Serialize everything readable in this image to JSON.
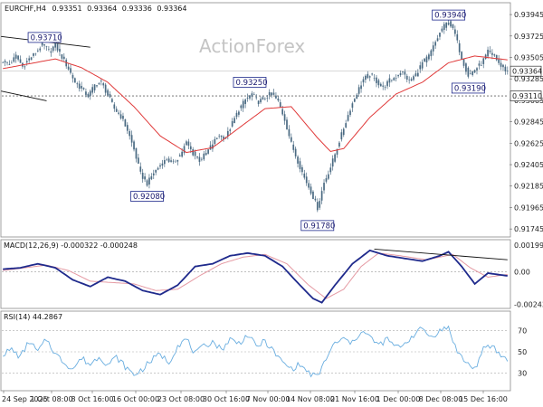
{
  "chart_data": {
    "type": "candlestick",
    "header": {
      "symbol": "EURCHF,H4",
      "open": "0.93351",
      "high": "0.93364",
      "low": "0.93336",
      "close": "0.93364"
    },
    "watermark": "ActionForex",
    "price_axis": {
      "ticks": [
        "0.93945",
        "0.93725",
        "0.93505",
        "0.93285",
        "0.93065",
        "0.92845",
        "0.92625",
        "0.92405",
        "0.92185",
        "0.91965",
        "0.91745"
      ],
      "range": [
        0.917,
        0.9402
      ]
    },
    "x_axis": {
      "ticks": [
        "24 Sep 2025",
        "1 Oct 08:00",
        "8 Oct 16:00",
        "16 Oct 00:00",
        "23 Oct 08:00",
        "30 Oct 16:00",
        "7 Nov 00:00",
        "14 Nov 08:00",
        "21 Nov 16:00",
        "1 Dec 00:00",
        "8 Dec 08:00",
        "15 Dec 16:00"
      ]
    },
    "current_price": "0.93364",
    "horizontal_level": "0.93110",
    "price_points": [
      {
        "i": 0,
        "v": 0.9347
      },
      {
        "i": 3,
        "v": 0.9343
      },
      {
        "i": 6,
        "v": 0.9352
      },
      {
        "i": 9,
        "v": 0.9341
      },
      {
        "i": 12,
        "v": 0.9349
      },
      {
        "i": 15,
        "v": 0.9355
      },
      {
        "i": 18,
        "v": 0.9364
      },
      {
        "i": 21,
        "v": 0.9357
      },
      {
        "i": 24,
        "v": 0.9363
      },
      {
        "i": 27,
        "v": 0.9351
      },
      {
        "i": 30,
        "v": 0.9339
      },
      {
        "i": 33,
        "v": 0.9325
      },
      {
        "i": 36,
        "v": 0.9318
      },
      {
        "i": 39,
        "v": 0.9311
      },
      {
        "i": 42,
        "v": 0.9322
      },
      {
        "i": 45,
        "v": 0.9325
      },
      {
        "i": 48,
        "v": 0.9312
      },
      {
        "i": 51,
        "v": 0.9298
      },
      {
        "i": 54,
        "v": 0.929
      },
      {
        "i": 57,
        "v": 0.9276
      },
      {
        "i": 60,
        "v": 0.9256
      },
      {
        "i": 63,
        "v": 0.9231
      },
      {
        "i": 66,
        "v": 0.9221
      },
      {
        "i": 69,
        "v": 0.9232
      },
      {
        "i": 72,
        "v": 0.924
      },
      {
        "i": 75,
        "v": 0.9246
      },
      {
        "i": 78,
        "v": 0.9242
      },
      {
        "i": 81,
        "v": 0.925
      },
      {
        "i": 84,
        "v": 0.9263
      },
      {
        "i": 87,
        "v": 0.9252
      },
      {
        "i": 90,
        "v": 0.9245
      },
      {
        "i": 93,
        "v": 0.9252
      },
      {
        "i": 96,
        "v": 0.9262
      },
      {
        "i": 99,
        "v": 0.9271
      },
      {
        "i": 102,
        "v": 0.9268
      },
      {
        "i": 105,
        "v": 0.9283
      },
      {
        "i": 108,
        "v": 0.9297
      },
      {
        "i": 111,
        "v": 0.9307
      },
      {
        "i": 114,
        "v": 0.9313
      },
      {
        "i": 117,
        "v": 0.9305
      },
      {
        "i": 120,
        "v": 0.9309
      },
      {
        "i": 123,
        "v": 0.9314
      },
      {
        "i": 126,
        "v": 0.9305
      },
      {
        "i": 129,
        "v": 0.9287
      },
      {
        "i": 132,
        "v": 0.9262
      },
      {
        "i": 135,
        "v": 0.9244
      },
      {
        "i": 138,
        "v": 0.9227
      },
      {
        "i": 141,
        "v": 0.9213
      },
      {
        "i": 144,
        "v": 0.9196
      },
      {
        "i": 147,
        "v": 0.9222
      },
      {
        "i": 150,
        "v": 0.9238
      },
      {
        "i": 153,
        "v": 0.9258
      },
      {
        "i": 156,
        "v": 0.9278
      },
      {
        "i": 159,
        "v": 0.9298
      },
      {
        "i": 162,
        "v": 0.9314
      },
      {
        "i": 165,
        "v": 0.9328
      },
      {
        "i": 168,
        "v": 0.9333
      },
      {
        "i": 171,
        "v": 0.9326
      },
      {
        "i": 174,
        "v": 0.9319
      },
      {
        "i": 177,
        "v": 0.9327
      },
      {
        "i": 180,
        "v": 0.9331
      },
      {
        "i": 183,
        "v": 0.9335
      },
      {
        "i": 186,
        "v": 0.9326
      },
      {
        "i": 189,
        "v": 0.9333
      },
      {
        "i": 192,
        "v": 0.9345
      },
      {
        "i": 195,
        "v": 0.9352
      },
      {
        "i": 198,
        "v": 0.9366
      },
      {
        "i": 201,
        "v": 0.938
      },
      {
        "i": 204,
        "v": 0.9388
      },
      {
        "i": 207,
        "v": 0.9374
      },
      {
        "i": 210,
        "v": 0.935
      },
      {
        "i": 213,
        "v": 0.9332
      },
      {
        "i": 216,
        "v": 0.9338
      },
      {
        "i": 219,
        "v": 0.9344
      },
      {
        "i": 222,
        "v": 0.9356
      },
      {
        "i": 225,
        "v": 0.9352
      },
      {
        "i": 228,
        "v": 0.9341
      },
      {
        "i": 231,
        "v": 0.9336
      }
    ],
    "ma_points": [
      {
        "i": 0,
        "v": 0.9339
      },
      {
        "i": 12,
        "v": 0.9344
      },
      {
        "i": 24,
        "v": 0.9349
      },
      {
        "i": 36,
        "v": 0.934
      },
      {
        "i": 48,
        "v": 0.9325
      },
      {
        "i": 60,
        "v": 0.93
      },
      {
        "i": 72,
        "v": 0.927
      },
      {
        "i": 84,
        "v": 0.9253
      },
      {
        "i": 96,
        "v": 0.9258
      },
      {
        "i": 108,
        "v": 0.9278
      },
      {
        "i": 120,
        "v": 0.9298
      },
      {
        "i": 132,
        "v": 0.93
      },
      {
        "i": 144,
        "v": 0.9268
      },
      {
        "i": 150,
        "v": 0.9254
      },
      {
        "i": 156,
        "v": 0.9257
      },
      {
        "i": 168,
        "v": 0.9289
      },
      {
        "i": 180,
        "v": 0.9313
      },
      {
        "i": 192,
        "v": 0.9325
      },
      {
        "i": 204,
        "v": 0.9345
      },
      {
        "i": 216,
        "v": 0.9352
      },
      {
        "i": 231,
        "v": 0.9348
      }
    ],
    "annotations": [
      {
        "label": "0.93710",
        "i": 19,
        "v": 0.9371
      },
      {
        "label": "0.92080",
        "i": 66,
        "v": 0.9208
      },
      {
        "label": "0.93250",
        "i": 113,
        "v": 0.9325
      },
      {
        "label": "0.91780",
        "i": 144,
        "v": 0.9178
      },
      {
        "label": "0.93940",
        "i": 204,
        "v": 0.9394
      },
      {
        "label": "0.93190",
        "i": 213,
        "v": 0.9319
      }
    ],
    "trend_lines": [
      {
        "from": {
          "i": 0,
          "v": 0.9372
        },
        "to": {
          "i": 40,
          "v": 0.9361
        }
      },
      {
        "from": {
          "i": 0,
          "v": 0.9316
        },
        "to": {
          "i": 20,
          "v": 0.9306
        }
      }
    ],
    "macd": {
      "label": "MACD(12,26,9) -0.000322 -0.000248",
      "ticks": [
        "0.001998",
        "0.00",
        "-0.002434"
      ],
      "range": [
        -0.0026,
        0.0022
      ],
      "macd_points": [
        {
          "i": 0,
          "v": 0.0002
        },
        {
          "i": 8,
          "v": 0.0003
        },
        {
          "i": 16,
          "v": 0.0006
        },
        {
          "i": 24,
          "v": 0.0003
        },
        {
          "i": 32,
          "v": -0.0006
        },
        {
          "i": 40,
          "v": -0.0011
        },
        {
          "i": 48,
          "v": -0.0004
        },
        {
          "i": 56,
          "v": -0.0007
        },
        {
          "i": 64,
          "v": -0.0014
        },
        {
          "i": 72,
          "v": -0.0017
        },
        {
          "i": 80,
          "v": -0.001
        },
        {
          "i": 88,
          "v": 0.0004
        },
        {
          "i": 96,
          "v": 0.0006
        },
        {
          "i": 104,
          "v": 0.0012
        },
        {
          "i": 112,
          "v": 0.0014
        },
        {
          "i": 120,
          "v": 0.0012
        },
        {
          "i": 128,
          "v": 0.0004
        },
        {
          "i": 136,
          "v": -0.001
        },
        {
          "i": 142,
          "v": -0.002
        },
        {
          "i": 146,
          "v": -0.0023
        },
        {
          "i": 152,
          "v": -0.001
        },
        {
          "i": 160,
          "v": 0.0006
        },
        {
          "i": 168,
          "v": 0.0016
        },
        {
          "i": 176,
          "v": 0.0012
        },
        {
          "i": 184,
          "v": 0.001
        },
        {
          "i": 192,
          "v": 0.0008
        },
        {
          "i": 200,
          "v": 0.0012
        },
        {
          "i": 204,
          "v": 0.0015
        },
        {
          "i": 210,
          "v": 0.0004
        },
        {
          "i": 216,
          "v": -0.0009
        },
        {
          "i": 222,
          "v": -0.0001
        },
        {
          "i": 231,
          "v": -0.0003
        }
      ],
      "signal_points": [
        {
          "i": 0,
          "v": 0.0001
        },
        {
          "i": 10,
          "v": 0.0003
        },
        {
          "i": 20,
          "v": 0.0005
        },
        {
          "i": 30,
          "v": 0.0001
        },
        {
          "i": 40,
          "v": -0.0007
        },
        {
          "i": 50,
          "v": -0.0008
        },
        {
          "i": 60,
          "v": -0.0009
        },
        {
          "i": 70,
          "v": -0.0014
        },
        {
          "i": 80,
          "v": -0.0013
        },
        {
          "i": 90,
          "v": -0.0003
        },
        {
          "i": 100,
          "v": 0.0006
        },
        {
          "i": 110,
          "v": 0.0011
        },
        {
          "i": 120,
          "v": 0.0013
        },
        {
          "i": 130,
          "v": 0.0006
        },
        {
          "i": 140,
          "v": -0.001
        },
        {
          "i": 148,
          "v": -0.002
        },
        {
          "i": 156,
          "v": -0.0013
        },
        {
          "i": 164,
          "v": 0.0004
        },
        {
          "i": 172,
          "v": 0.0014
        },
        {
          "i": 182,
          "v": 0.0012
        },
        {
          "i": 194,
          "v": 0.0009
        },
        {
          "i": 206,
          "v": 0.0013
        },
        {
          "i": 214,
          "v": 0.0003
        },
        {
          "i": 222,
          "v": -0.0004
        },
        {
          "i": 231,
          "v": -0.0002
        }
      ],
      "trend_line": {
        "from": {
          "i": 170,
          "v": 0.0017
        },
        "to": {
          "i": 231,
          "v": 0.0009
        }
      }
    },
    "rsi": {
      "label": "RSI(14) 44.2867",
      "ticks": [
        "70",
        "50",
        "30"
      ],
      "range": [
        15,
        85
      ],
      "points": [
        {
          "i": 0,
          "v": 48
        },
        {
          "i": 4,
          "v": 52
        },
        {
          "i": 8,
          "v": 45
        },
        {
          "i": 12,
          "v": 60
        },
        {
          "i": 16,
          "v": 50
        },
        {
          "i": 20,
          "v": 62
        },
        {
          "i": 24,
          "v": 48
        },
        {
          "i": 28,
          "v": 40
        },
        {
          "i": 32,
          "v": 34
        },
        {
          "i": 36,
          "v": 44
        },
        {
          "i": 40,
          "v": 38
        },
        {
          "i": 44,
          "v": 46
        },
        {
          "i": 48,
          "v": 38
        },
        {
          "i": 52,
          "v": 45
        },
        {
          "i": 56,
          "v": 36
        },
        {
          "i": 60,
          "v": 28
        },
        {
          "i": 64,
          "v": 34
        },
        {
          "i": 68,
          "v": 42
        },
        {
          "i": 72,
          "v": 48
        },
        {
          "i": 76,
          "v": 40
        },
        {
          "i": 80,
          "v": 56
        },
        {
          "i": 84,
          "v": 62
        },
        {
          "i": 88,
          "v": 48
        },
        {
          "i": 92,
          "v": 55
        },
        {
          "i": 96,
          "v": 60
        },
        {
          "i": 100,
          "v": 52
        },
        {
          "i": 104,
          "v": 62
        },
        {
          "i": 108,
          "v": 58
        },
        {
          "i": 112,
          "v": 66
        },
        {
          "i": 116,
          "v": 55
        },
        {
          "i": 120,
          "v": 60
        },
        {
          "i": 124,
          "v": 50
        },
        {
          "i": 128,
          "v": 40
        },
        {
          "i": 132,
          "v": 34
        },
        {
          "i": 136,
          "v": 38
        },
        {
          "i": 140,
          "v": 30
        },
        {
          "i": 144,
          "v": 26
        },
        {
          "i": 148,
          "v": 44
        },
        {
          "i": 152,
          "v": 58
        },
        {
          "i": 156,
          "v": 62
        },
        {
          "i": 160,
          "v": 58
        },
        {
          "i": 164,
          "v": 70
        },
        {
          "i": 168,
          "v": 64
        },
        {
          "i": 172,
          "v": 56
        },
        {
          "i": 176,
          "v": 62
        },
        {
          "i": 180,
          "v": 54
        },
        {
          "i": 184,
          "v": 58
        },
        {
          "i": 188,
          "v": 66
        },
        {
          "i": 192,
          "v": 72
        },
        {
          "i": 196,
          "v": 64
        },
        {
          "i": 200,
          "v": 70
        },
        {
          "i": 204,
          "v": 73
        },
        {
          "i": 208,
          "v": 50
        },
        {
          "i": 212,
          "v": 40
        },
        {
          "i": 216,
          "v": 34
        },
        {
          "i": 220,
          "v": 52
        },
        {
          "i": 224,
          "v": 56
        },
        {
          "i": 228,
          "v": 46
        },
        {
          "i": 231,
          "v": 44
        }
      ]
    },
    "colors": {
      "candle": "#4a6a82",
      "ma": "#e03a3a",
      "macd_line": "#1f2a8c",
      "signal_line": "#e59aa3",
      "rsi_line": "#6aaee0",
      "annotation_border": "#1f2a8c",
      "level_line": "#666666"
    }
  }
}
